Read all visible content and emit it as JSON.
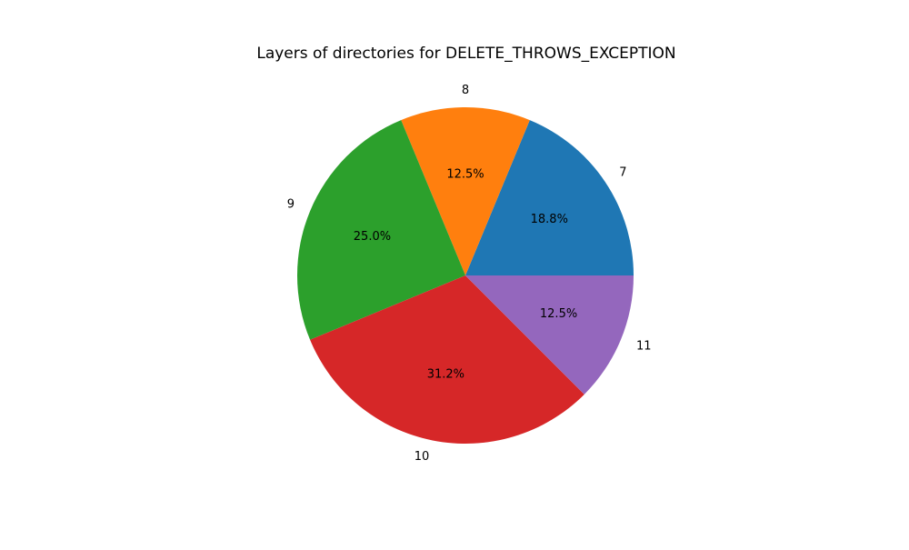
{
  "chart_data": {
    "type": "pie",
    "title": "Layers of directories for DELETE_THROWS_EXCEPTION",
    "start_angle_deg": 0,
    "direction": "counterclockwise",
    "slices": [
      {
        "label": "7",
        "value": 3,
        "percent_label": "18.8%",
        "color": "#1f77b4"
      },
      {
        "label": "8",
        "value": 2,
        "percent_label": "12.5%",
        "color": "#ff7f0e"
      },
      {
        "label": "9",
        "value": 4,
        "percent_label": "25.0%",
        "color": "#2ca02c"
      },
      {
        "label": "10",
        "value": 5,
        "percent_label": "31.2%",
        "color": "#d62728"
      },
      {
        "label": "11",
        "value": 2,
        "percent_label": "12.5%",
        "color": "#9467bd"
      }
    ]
  }
}
